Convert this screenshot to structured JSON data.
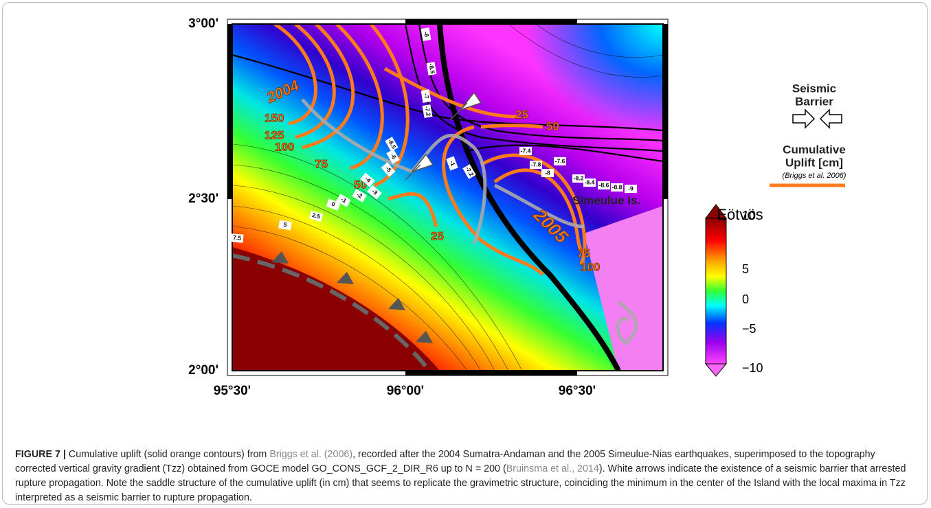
{
  "figure": {
    "map": {
      "x_ticks": [
        "95°30'",
        "96°00'",
        "96°30'"
      ],
      "y_ticks": [
        "3°00'",
        "2°30'",
        "2°00'"
      ],
      "event_labels": [
        "2004",
        "2005"
      ],
      "island_label": "Simeulue Is.",
      "uplift_contours": [
        "150",
        "125",
        "100",
        "75",
        "50",
        "25",
        "25",
        "50",
        "75",
        "100"
      ],
      "tzz_contours": [
        "-8",
        "-8.5",
        "-7",
        "-7.2",
        "-6.5",
        "-6",
        "-5",
        "-4",
        "-3",
        "-2",
        "-1",
        "0",
        "2.5",
        "5",
        "7.5",
        "-1",
        "-7.2",
        "-7.4",
        "-7.6",
        "-7.8",
        "-8",
        "-8.2",
        "-8.4",
        "-8.6",
        "-8.8",
        "-9"
      ]
    },
    "legend": {
      "barrier_title": [
        "Seismic",
        "Barrier"
      ],
      "uplift_title": [
        "Cumulative",
        "Uplift [cm]"
      ],
      "uplift_source": "(Briggs et al. 2006)"
    },
    "colorbar": {
      "title": "Eötvös",
      "ticks": [
        "10",
        "5",
        "0",
        "−5",
        "−10"
      ]
    },
    "caption": {
      "label": "FIGURE 7 |",
      "parts": [
        " Cumulative uplift (solid orange contours) from ",
        "Briggs et al. (2006)",
        ", recorded after the 2004 Sumatra-Andaman and the 2005 Simeulue-Nias earthquakes, superimposed to the topography corrected vertical gravity gradient (Tzz) obtained from GOCE model GO_CONS_GCF_2_DIR_R6 up to N = 200 (",
        "Bruinsma et al., 2014",
        "). White arrows indicate the existence of a seismic barrier that arrested rupture propagation. Note the saddle structure of the cumulative uplift (in cm) that seems to replicate the gravimetric structure, coinciding the minimum in the center of the Island with the local maxima in Tzz interpreted as a seismic barrier to rupture propagation."
      ]
    }
  }
}
